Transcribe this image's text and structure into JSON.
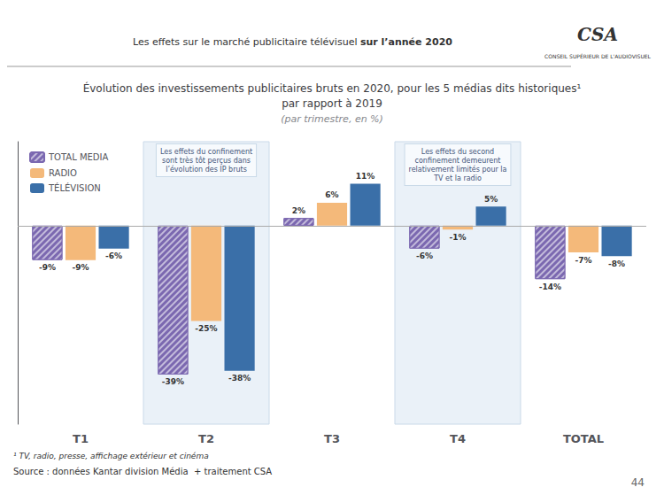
{
  "chart_data": {
    "type": "bar",
    "title": "Évolution des investissements publicitaires bruts en 2020, pour les 5 médias dits historiques¹\npar rapport à 2019",
    "subtitle": "(par trimestre, en %)",
    "header": [
      "Les effets sur le marché publicitaire télévisuel ",
      "sur l’année 2020"
    ],
    "logo": [
      "CSA",
      "CONSEIL SUPÉRIEUR DE L'AUDIOVISUEL"
    ],
    "categories": [
      "T1",
      "T2",
      "T3",
      "T4",
      "TOTAL"
    ],
    "series": [
      {
        "name": "TOTAL MEDIA",
        "color": "#7B68B0",
        "values": [
          -9,
          -39,
          2,
          -6,
          -14
        ],
        "value_labels": [
          "-9%",
          "-39%",
          "2%",
          "-6%",
          "-14%"
        ]
      },
      {
        "name": "RADIO",
        "color": "#F4B97A",
        "values": [
          -9,
          -25,
          6,
          -1,
          -7
        ],
        "value_labels": [
          "-9%",
          "-25%",
          "6%",
          "-1%",
          "-7%"
        ]
      },
      {
        "name": "TÉLÉVISION",
        "color": "#3A6FA8",
        "values": [
          -6,
          -38,
          11,
          5,
          -8
        ],
        "value_labels": [
          "-6%",
          "-38%",
          "11%",
          "5%",
          "-8%"
        ]
      }
    ],
    "ylim": [
      -52,
      22
    ],
    "tick_labels": "x",
    "grid": false,
    "legend": "upper left",
    "data_labels": true,
    "annotations": [
      {
        "x": "T2",
        "text": "Les effets du confinement\nsont très tôt perçus dans\nl’évolution des IP bruts"
      },
      {
        "x": "T4",
        "text": "Les effets du second\nconfinement demeurent\nrelativement limités pour la\nTV et la radio"
      }
    ],
    "footnotes": [
      "¹ TV, radio, presse, affichage extérieur et cinéma",
      "Source : données Kantar division Média  + traitement CSA"
    ],
    "page_number": "44"
  }
}
